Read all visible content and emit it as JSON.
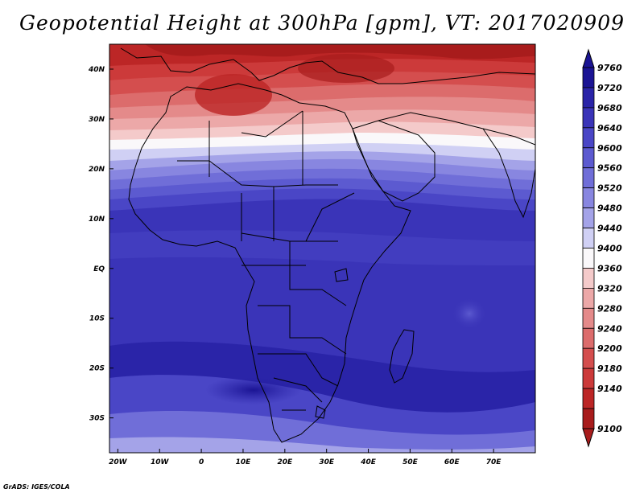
{
  "title": "Geopotential Height at 300hPa [gpm], VT: 2017020909",
  "credit": "GrADS: IGES/COLA",
  "map": {
    "lon_range": [
      -22,
      80
    ],
    "lat_range": [
      -37,
      45
    ],
    "lat_ticks": [
      {
        "lat": 40,
        "label": "40N"
      },
      {
        "lat": 30,
        "label": "30N"
      },
      {
        "lat": 20,
        "label": "20N"
      },
      {
        "lat": 10,
        "label": "10N"
      },
      {
        "lat": 0,
        "label": "EQ"
      },
      {
        "lat": -10,
        "label": "10S"
      },
      {
        "lat": -20,
        "label": "20S"
      },
      {
        "lat": -30,
        "label": "30S"
      }
    ],
    "lon_ticks": [
      {
        "lon": -20,
        "label": "20W"
      },
      {
        "lon": -10,
        "label": "10W"
      },
      {
        "lon": 0,
        "label": "0"
      },
      {
        "lon": 10,
        "label": "10E"
      },
      {
        "lon": 20,
        "label": "20E"
      },
      {
        "lon": 30,
        "label": "30E"
      },
      {
        "lon": 40,
        "label": "40E"
      },
      {
        "lon": 50,
        "label": "50E"
      },
      {
        "lon": 60,
        "label": "60E"
      },
      {
        "lon": 70,
        "label": "70E"
      }
    ]
  },
  "colorbar": {
    "levels": [
      {
        "label": "9760",
        "color": "#1b1494"
      },
      {
        "label": "9720",
        "color": "#2a24a8"
      },
      {
        "label": "9680",
        "color": "#3a34b8"
      },
      {
        "label": "9640",
        "color": "#4a46c6"
      },
      {
        "label": "9600",
        "color": "#5c5ad0"
      },
      {
        "label": "9560",
        "color": "#706ed8"
      },
      {
        "label": "9520",
        "color": "#8886e0"
      },
      {
        "label": "9480",
        "color": "#a4a3e8"
      },
      {
        "label": "9440",
        "color": "#d0d0f4"
      },
      {
        "label": "9400",
        "color": "#faf8fa"
      },
      {
        "label": "9360",
        "color": "#f4caca"
      },
      {
        "label": "9320",
        "color": "#eca8a8"
      },
      {
        "label": "9280",
        "color": "#e48a8a"
      },
      {
        "label": "9240",
        "color": "#dc6c6c"
      },
      {
        "label": "9200",
        "color": "#d44e4e"
      },
      {
        "label": "9180",
        "color": "#cc3a3a"
      },
      {
        "label": "9140",
        "color": "#bc2626"
      },
      {
        "label": "9100",
        "color": "#a81c1c"
      }
    ]
  }
}
